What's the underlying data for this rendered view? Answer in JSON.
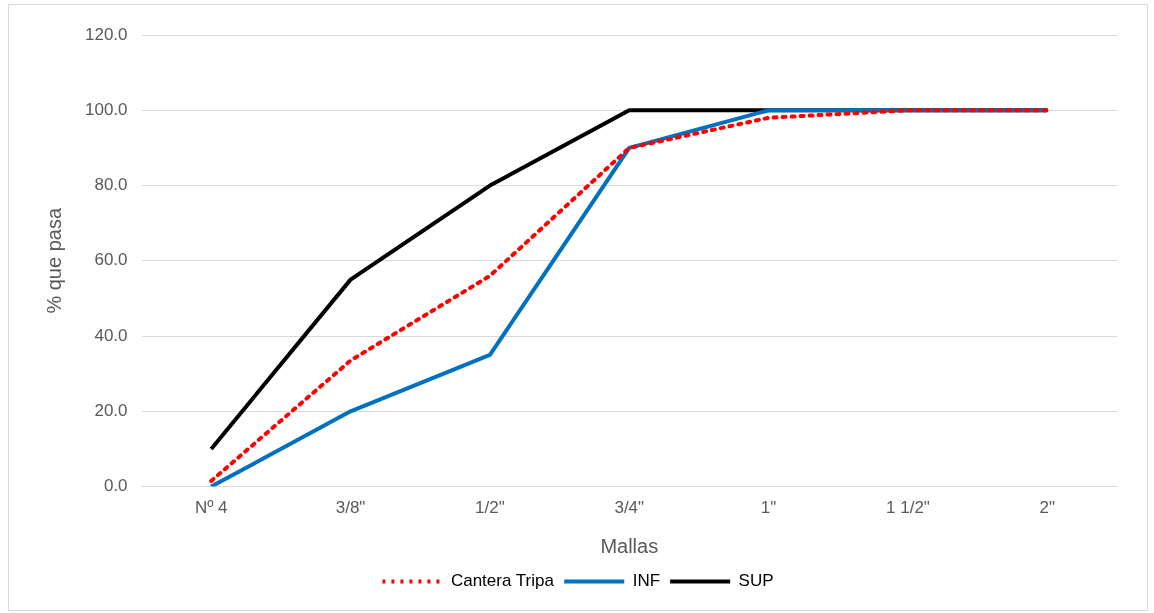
{
  "chart_data": {
    "type": "line",
    "xlabel": "Mallas",
    "ylabel": "% que pasa",
    "categories": [
      "Nº 4",
      "3/8\"",
      "1/2\"",
      "3/4\"",
      "1\"",
      "1 1/2\"",
      "2\""
    ],
    "series": [
      {
        "name": "Cantera Tripa",
        "color": "#ff0000",
        "line_style": "dotted",
        "values": [
          1.5,
          33.5,
          56,
          90,
          98,
          100,
          100
        ]
      },
      {
        "name": "INF",
        "color": "#0070c0",
        "line_style": "solid",
        "values": [
          0,
          20,
          35,
          90,
          100,
          100,
          100
        ]
      },
      {
        "name": "SUP",
        "color": "#000000",
        "line_style": "solid",
        "values": [
          10,
          55,
          80,
          100,
          100,
          100,
          100
        ]
      }
    ],
    "ylim": [
      0,
      120
    ],
    "yticks": [
      {
        "value": 0,
        "label": "0.0"
      },
      {
        "value": 20,
        "label": "20.0"
      },
      {
        "value": 40,
        "label": "40.0"
      },
      {
        "value": 60,
        "label": "60.0"
      },
      {
        "value": 80,
        "label": "80.0"
      },
      {
        "value": 100,
        "label": "100.0"
      },
      {
        "value": 120,
        "label": "120.0"
      }
    ],
    "grid": "y",
    "legend": "bottom",
    "marker": "none"
  }
}
